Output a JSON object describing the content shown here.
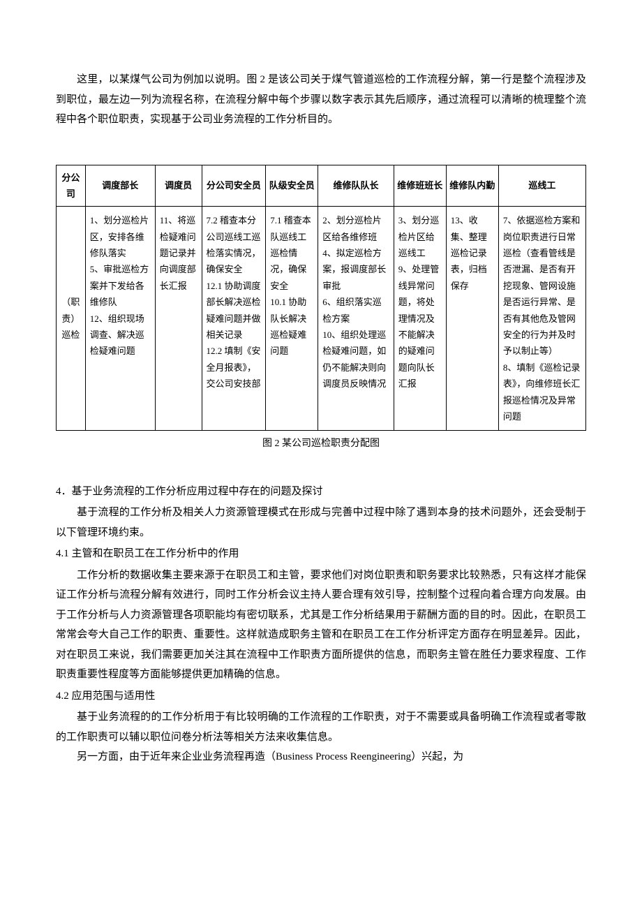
{
  "intro": "这里，以某煤气公司为例加以说明。图 2 是该公司关于煤气管道巡检的工作流程分解，第一行是整个流程涉及到职位，最左边一列为流程名称，在流程分解中每个步骤以数字表示其先后顺序，通过流程可以清晰的梳理整个流程中各个职位职责，实现基于公司业务流程的工作分析目的。",
  "table": {
    "headers": [
      "分公司",
      "调度部长",
      "调度员",
      "分公司安全员",
      "队级安全员",
      "维修队队长",
      "维修班班长",
      "维修队内勤",
      "巡线工"
    ],
    "row_label": "（职责）巡检",
    "cells": [
      "1、划分巡检片区，安排各维修队落实\n5、审批巡检方案并下发给各维修队\n12、组织现场调查、解决巡检疑难问题",
      "11、将巡检疑难问题记录并向调度部长汇报",
      "7.2 稽查本分公司巡线工巡检落实情况，确保安全\n12.1 协助调度部长解决巡检疑难问题并做相关记录\n12.2 填制《安全月报表》，交公司安技部",
      "7.1 稽查本队巡线工巡检情况，确保安全\n10.1 协助队长解决巡检疑难问题",
      "2、划分巡检片区给各维修班\n4、拟定巡检方案，报调度部长审批\n6、组织落实巡检方案\n10、组织处理巡检疑难问题，如仍不能解决则向调度员反映情况",
      "3、划分巡检片区给巡线工\n9、处理管线异常问题，将处理情况及不能解决的疑难问题向队长汇报",
      "13、收集、整理巡检记录表，归档保存",
      "7、依据巡检方案和岗位职责进行日常巡检（查看管线是否泄漏、是否有开挖现象、管网设施是否运行异常、是否有其他危及管网安全的行为并及时予以制止等）\n8、填制《巡检记录表》，向维修班长汇报巡检情况及异常问题"
    ]
  },
  "caption": "图 2   某公司巡检职责分配图",
  "section4_title": "4．基于业务流程的工作分析应用过程中存在的问题及探讨",
  "section4_intro": "基于流程的工作分析及相关人力资源管理模式在形成与完善中过程中除了遇到本身的技术问题外，还会受制于以下管理环境约束。",
  "section41_title": "4.1 主管和在职员工在工作分析中的作用",
  "section41_body": "工作分析的数据收集主要来源于在职员工和主管，要求他们对岗位职责和职务要求比较熟悉，只有这样才能保证工作分析与流程分解有效进行，同时工作分析会议主持人要合理有效引导，控制整个过程向着合理方向发展。由于工作分析与人力资源管理各项职能均有密切联系，尤其是工作分析结果用于薪酬方面的目的时。因此，在职员工常常会夸大自己工作的职责、重要性。这样就造成职务主管和在职员工在工作分析评定方面存在明显差异。因此，对在职员工来说，我们需要更加关注其在流程中工作职责方面所提供的信息，而职务主管在胜任力要求程度、工作职责重要性程度等方面能够提供更加精确的信息。",
  "section42_title": "4.2   应用范围与适用性",
  "section42_body1": "基于业务流程的的工作分析用于有比较明确的工作流程的工作职责，对于不需要或具备明确工作流程或者零散的工作职责可以辅以职位问卷分析法等相关方法来收集信息。",
  "section42_body2": "另一方面，由于近年来企业业务流程再造（Business Process Reengineering）兴起，为"
}
